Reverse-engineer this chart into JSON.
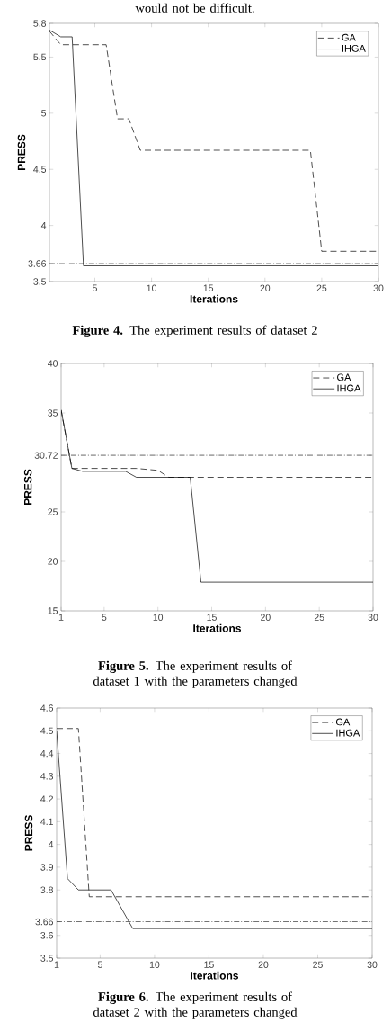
{
  "chart_data": [
    {
      "type": "line",
      "xlabel": "Iterations",
      "ylabel": "PRESS",
      "xlim": [
        1,
        30
      ],
      "ylim": [
        3.5,
        5.8
      ],
      "xticks": [
        5,
        10,
        15,
        20,
        25,
        30
      ],
      "yticks": [
        3.5,
        3.66,
        4,
        4.5,
        5,
        5.5,
        5.8
      ],
      "legend": "top right",
      "series": [
        {
          "name": "GA",
          "color": "#000000",
          "line_style": "dashed",
          "x": [
            1,
            2,
            6,
            7,
            8,
            9,
            24,
            25,
            30
          ],
          "values": [
            5.73,
            5.61,
            5.61,
            4.95,
            4.95,
            4.67,
            4.67,
            3.77,
            3.77
          ]
        },
        {
          "name": "IHGA",
          "color": "#000000",
          "line_style": "solid",
          "x": [
            1,
            2,
            3,
            4,
            30
          ],
          "values": [
            5.74,
            5.68,
            5.68,
            3.64,
            3.64
          ]
        }
      ],
      "ref_lines": [
        {
          "axis": "y",
          "value": 3.66,
          "line_style": "dashdot",
          "color": "#000000"
        }
      ],
      "annotations": [
        "would not be difficult.",
        "**Figure 4.** The experiment results of dataset 2"
      ]
    },
    {
      "type": "line",
      "xlabel": "Iterations",
      "ylabel": "PRESS",
      "xlim": [
        1,
        30
      ],
      "ylim": [
        15,
        40
      ],
      "xticks": [
        1,
        5,
        10,
        15,
        20,
        25,
        30
      ],
      "yticks": [
        15,
        20,
        25,
        30.72,
        35,
        40
      ],
      "legend": "top right",
      "series": [
        {
          "name": "GA",
          "color": "#000000",
          "line_style": "dashed",
          "x": [
            1,
            2,
            8,
            9,
            10,
            11,
            30
          ],
          "values": [
            35.3,
            29.4,
            29.4,
            29.3,
            29.2,
            28.5,
            28.5
          ]
        },
        {
          "name": "IHGA",
          "color": "#000000",
          "line_style": "solid",
          "x": [
            1,
            2,
            3,
            7,
            8,
            13,
            14,
            30
          ],
          "values": [
            35.3,
            29.4,
            29.1,
            29.1,
            28.5,
            28.5,
            17.9,
            17.9
          ]
        }
      ],
      "ref_lines": [
        {
          "axis": "y",
          "value": 30.72,
          "line_style": "dashdot",
          "color": "#000000"
        }
      ],
      "annotations": [
        "**Figure 5.** The experiment results of dataset 1 with the parameters changed"
      ]
    },
    {
      "type": "line",
      "xlabel": "Iterations",
      "ylabel": "PRESS",
      "xlim": [
        1,
        30
      ],
      "ylim": [
        3.5,
        4.6
      ],
      "xticks": [
        1,
        5,
        10,
        15,
        20,
        25,
        30
      ],
      "yticks": [
        3.5,
        3.6,
        3.66,
        3.8,
        3.9,
        4,
        4.1,
        4.2,
        4.3,
        4.4,
        4.5,
        4.6
      ],
      "legend": "top right",
      "series": [
        {
          "name": "GA",
          "color": "#000000",
          "line_style": "dashed",
          "x": [
            1,
            2,
            3,
            4,
            30
          ],
          "values": [
            4.51,
            4.51,
            4.51,
            3.77,
            3.77
          ]
        },
        {
          "name": "IHGA",
          "color": "#000000",
          "line_style": "solid",
          "x": [
            1,
            2,
            3,
            6,
            8,
            30
          ],
          "values": [
            4.5,
            3.85,
            3.8,
            3.8,
            3.63,
            3.63
          ]
        }
      ],
      "ref_lines": [
        {
          "axis": "y",
          "value": 3.66,
          "line_style": "dashdot",
          "color": "#000000"
        }
      ],
      "annotations": [
        "**Figure 6.** The experiment results of dataset 2 with the parameters changed"
      ]
    }
  ]
}
